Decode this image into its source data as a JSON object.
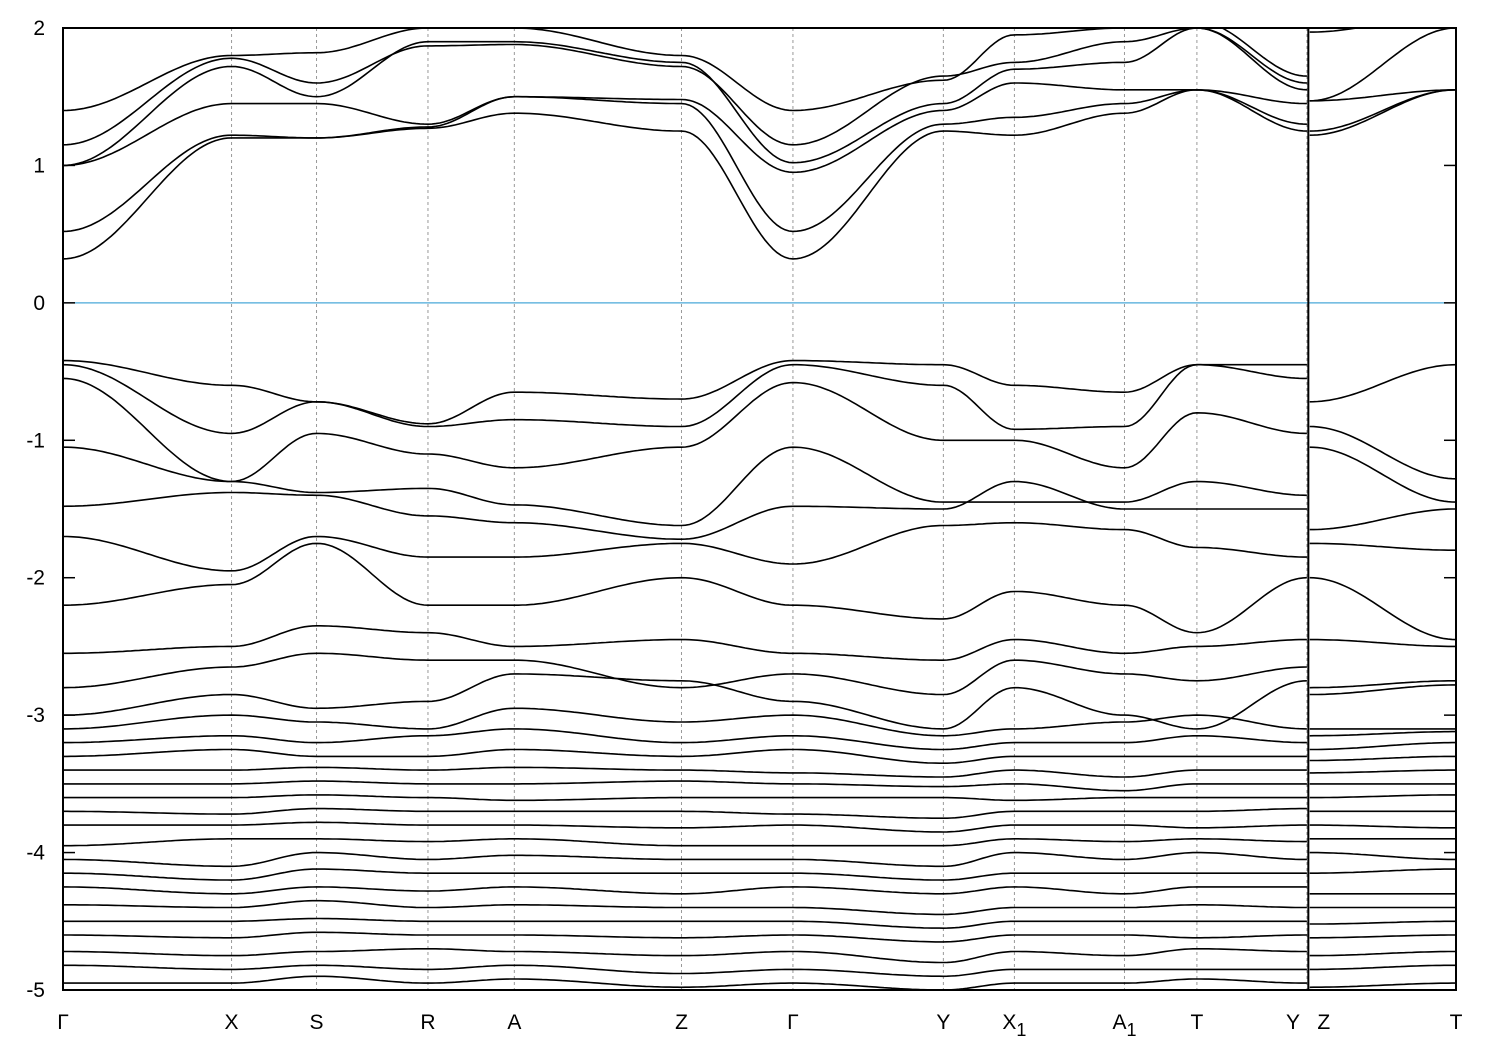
{
  "chart_data": {
    "type": "line",
    "title": "",
    "xlabel": "",
    "ylabel": "",
    "ylim": [
      -5,
      2
    ],
    "yticks": [
      "-5",
      "-4",
      "-3",
      "-2",
      "-1",
      "0",
      "1",
      "2"
    ],
    "grid": "vertical dashed lines at high-symmetry points",
    "fermi_level": 0,
    "fermi_color": "#4aa8d8",
    "band_color": "#000000",
    "kpoints": [
      {
        "label": "Γ",
        "sub": "",
        "x": 0
      },
      {
        "label": "X",
        "sub": "",
        "x": 1.21
      },
      {
        "label": "S",
        "sub": "",
        "x": 1.82
      },
      {
        "label": "R",
        "sub": "",
        "x": 2.62
      },
      {
        "label": "A",
        "sub": "",
        "x": 3.24
      },
      {
        "label": "Z",
        "sub": "",
        "x": 4.44
      },
      {
        "label": "Γ",
        "sub": "",
        "x": 5.24
      },
      {
        "label": "Y",
        "sub": "",
        "x": 6.32
      },
      {
        "label": "X",
        "sub": "1",
        "x": 6.83
      },
      {
        "label": "A",
        "sub": "1",
        "x": 7.62
      },
      {
        "label": "T",
        "sub": "",
        "x": 8.14
      },
      {
        "label": "Y",
        "sub": "",
        "x": 8.93
      },
      {
        "label": "Z",
        "sub": "",
        "x": 8.95
      },
      {
        "label": "T",
        "sub": "",
        "x": 10.0
      }
    ],
    "path_break_after_index": 11,
    "bands": [
      [
        0.32,
        1.2,
        1.2,
        1.27,
        1.38,
        1.25,
        0.32,
        1.25,
        1.22,
        1.38,
        1.55,
        1.25,
        1.22,
        1.55
      ],
      [
        0.52,
        1.22,
        1.2,
        1.28,
        1.5,
        1.45,
        0.52,
        1.3,
        1.35,
        1.45,
        1.55,
        1.3,
        1.25,
        1.55
      ],
      [
        1.0,
        1.45,
        1.45,
        1.3,
        1.5,
        1.48,
        0.95,
        1.4,
        1.6,
        1.55,
        1.55,
        1.45,
        1.47,
        1.55
      ],
      [
        1.0,
        1.72,
        1.5,
        1.9,
        1.9,
        1.75,
        1.02,
        1.45,
        1.7,
        1.75,
        2.0,
        1.55,
        1.47,
        2.0
      ],
      [
        1.15,
        1.78,
        1.6,
        1.87,
        1.88,
        1.72,
        1.15,
        1.65,
        1.75,
        1.9,
        2.0,
        1.6,
        1.97,
        2.1
      ],
      [
        1.4,
        1.8,
        1.82,
        2.0,
        2.0,
        1.8,
        1.4,
        1.62,
        1.95,
        2.0,
        2.05,
        1.65,
        2.0,
        2.2
      ],
      [
        -0.42,
        -0.6,
        -0.72,
        -0.88,
        -0.65,
        -0.7,
        -0.42,
        -0.45,
        -0.6,
        -0.65,
        -0.45,
        -0.45,
        -0.72,
        -0.45
      ],
      [
        -0.45,
        -0.95,
        -0.72,
        -0.9,
        -0.85,
        -0.9,
        -0.45,
        -0.6,
        -0.92,
        -0.9,
        -0.45,
        -0.55,
        -0.9,
        -1.28
      ],
      [
        -0.55,
        -1.3,
        -0.95,
        -1.1,
        -1.2,
        -1.05,
        -0.58,
        -1.0,
        -1.0,
        -1.2,
        -0.8,
        -0.95,
        -1.05,
        -1.45
      ],
      [
        -1.05,
        -1.3,
        -1.38,
        -1.35,
        -1.47,
        -1.62,
        -1.05,
        -1.45,
        -1.45,
        -1.45,
        -1.3,
        -1.4,
        -1.65,
        -1.5
      ],
      [
        -1.48,
        -1.38,
        -1.4,
        -1.55,
        -1.6,
        -1.72,
        -1.48,
        -1.5,
        -1.3,
        -1.5,
        -1.5,
        -1.5,
        -1.75,
        -1.8
      ],
      [
        -1.7,
        -1.95,
        -1.7,
        -1.85,
        -1.85,
        -1.75,
        -1.9,
        -1.62,
        -1.6,
        -1.65,
        -1.78,
        -1.85,
        -2.0,
        -2.45
      ],
      [
        -2.2,
        -2.05,
        -1.75,
        -2.2,
        -2.2,
        -2.0,
        -2.2,
        -2.3,
        -2.1,
        -2.2,
        -2.4,
        -2.0,
        -2.45,
        -2.5
      ],
      [
        -2.55,
        -2.5,
        -2.35,
        -2.4,
        -2.5,
        -2.45,
        -2.55,
        -2.6,
        -2.45,
        -2.55,
        -2.5,
        -2.45,
        -2.8,
        -2.75
      ],
      [
        -2.8,
        -2.65,
        -2.55,
        -2.6,
        -2.6,
        -2.8,
        -2.7,
        -2.85,
        -2.6,
        -2.7,
        -2.75,
        -2.65,
        -2.85,
        -2.78
      ],
      [
        -3.0,
        -2.85,
        -2.95,
        -2.9,
        -2.7,
        -2.75,
        -2.9,
        -3.1,
        -2.8,
        -3.0,
        -3.1,
        -2.75,
        -3.1,
        -3.1
      ],
      [
        -3.1,
        -3.0,
        -3.05,
        -3.1,
        -2.95,
        -3.05,
        -3.0,
        -3.15,
        -3.1,
        -3.05,
        -3.0,
        -3.1,
        -3.15,
        -3.12
      ],
      [
        -3.2,
        -3.15,
        -3.2,
        -3.15,
        -3.1,
        -3.2,
        -3.15,
        -3.25,
        -3.2,
        -3.2,
        -3.15,
        -3.2,
        -3.25,
        -3.2
      ],
      [
        -3.3,
        -3.25,
        -3.3,
        -3.3,
        -3.25,
        -3.3,
        -3.25,
        -3.35,
        -3.3,
        -3.3,
        -3.3,
        -3.3,
        -3.33,
        -3.3
      ],
      [
        -3.4,
        -3.4,
        -3.38,
        -3.4,
        -3.38,
        -3.4,
        -3.42,
        -3.45,
        -3.4,
        -3.45,
        -3.4,
        -3.4,
        -3.42,
        -3.4
      ],
      [
        -3.5,
        -3.5,
        -3.48,
        -3.5,
        -3.5,
        -3.48,
        -3.5,
        -3.52,
        -3.5,
        -3.55,
        -3.5,
        -3.5,
        -3.5,
        -3.5
      ],
      [
        -3.6,
        -3.6,
        -3.58,
        -3.6,
        -3.62,
        -3.6,
        -3.6,
        -3.6,
        -3.62,
        -3.6,
        -3.6,
        -3.6,
        -3.6,
        -3.58
      ],
      [
        -3.7,
        -3.72,
        -3.68,
        -3.7,
        -3.7,
        -3.7,
        -3.72,
        -3.75,
        -3.7,
        -3.7,
        -3.7,
        -3.68,
        -3.7,
        -3.7
      ],
      [
        -3.8,
        -3.8,
        -3.78,
        -3.8,
        -3.8,
        -3.82,
        -3.8,
        -3.85,
        -3.8,
        -3.8,
        -3.82,
        -3.8,
        -3.8,
        -3.82
      ],
      [
        -3.95,
        -3.9,
        -3.9,
        -3.92,
        -3.9,
        -3.95,
        -3.95,
        -3.95,
        -3.9,
        -3.92,
        -3.9,
        -3.92,
        -3.9,
        -3.9
      ],
      [
        -4.05,
        -4.1,
        -4.0,
        -4.05,
        -4.02,
        -4.05,
        -4.05,
        -4.1,
        -4.0,
        -4.05,
        -4.0,
        -4.05,
        -4.0,
        -4.05
      ],
      [
        -4.15,
        -4.2,
        -4.12,
        -4.15,
        -4.15,
        -4.15,
        -4.15,
        -4.2,
        -4.15,
        -4.15,
        -4.15,
        -4.15,
        -4.15,
        -4.12
      ],
      [
        -4.25,
        -4.3,
        -4.25,
        -4.28,
        -4.25,
        -4.3,
        -4.25,
        -4.3,
        -4.25,
        -4.3,
        -4.25,
        -4.25,
        -4.3,
        -4.3
      ],
      [
        -4.38,
        -4.4,
        -4.35,
        -4.4,
        -4.38,
        -4.4,
        -4.4,
        -4.45,
        -4.4,
        -4.4,
        -4.38,
        -4.4,
        -4.4,
        -4.4
      ],
      [
        -4.5,
        -4.5,
        -4.48,
        -4.5,
        -4.5,
        -4.5,
        -4.5,
        -4.55,
        -4.5,
        -4.5,
        -4.5,
        -4.5,
        -4.52,
        -4.5
      ],
      [
        -4.6,
        -4.62,
        -4.58,
        -4.6,
        -4.6,
        -4.62,
        -4.6,
        -4.65,
        -4.6,
        -4.6,
        -4.62,
        -4.6,
        -4.62,
        -4.6
      ],
      [
        -4.72,
        -4.75,
        -4.72,
        -4.7,
        -4.72,
        -4.75,
        -4.72,
        -4.8,
        -4.72,
        -4.75,
        -4.7,
        -4.72,
        -4.75,
        -4.72
      ],
      [
        -4.82,
        -4.85,
        -4.82,
        -4.85,
        -4.82,
        -4.88,
        -4.85,
        -4.9,
        -4.85,
        -4.85,
        -4.85,
        -4.85,
        -4.85,
        -4.82
      ],
      [
        -4.95,
        -4.95,
        -4.9,
        -4.95,
        -4.92,
        -4.98,
        -4.95,
        -5.0,
        -4.95,
        -4.95,
        -4.92,
        -4.95,
        -4.98,
        -4.95
      ]
    ]
  }
}
